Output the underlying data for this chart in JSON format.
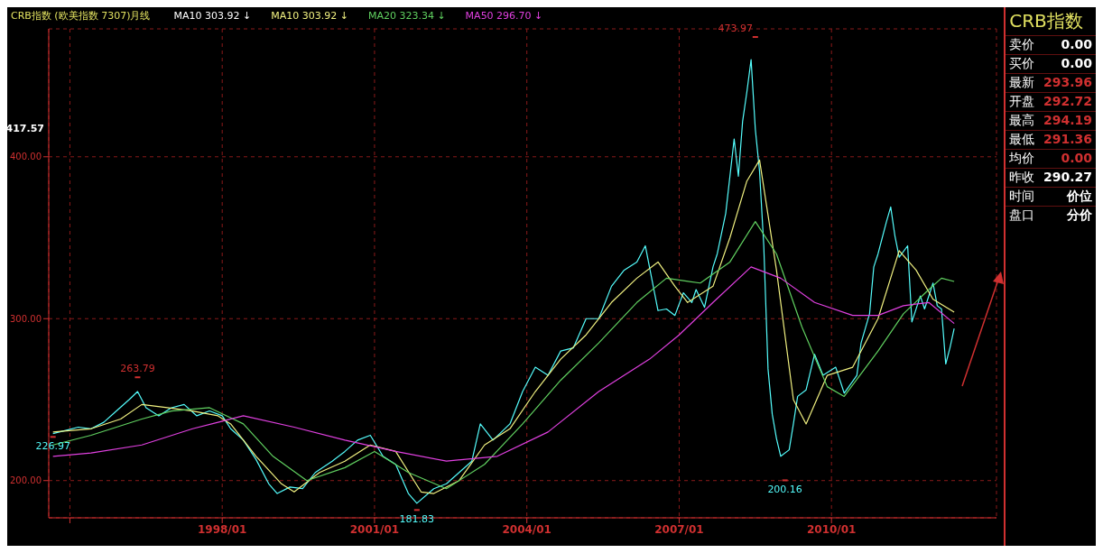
{
  "chart_data": {
    "type": "line",
    "title": "CRB指数 (欧美指数 7307)月线",
    "subtitle": "MA10 303.92 ↓",
    "legend": "top left",
    "grid": true,
    "xlim": [
      "1994-08",
      "2013-04"
    ],
    "xticks": [
      {
        "value": "1995-01",
        "label": null
      },
      {
        "value": "1998-01",
        "label": "1998/01"
      },
      {
        "value": "2001-01",
        "label": "2001/01"
      },
      {
        "value": "2004-01",
        "label": "2004/01"
      },
      {
        "value": "2007-01",
        "label": "2007/01"
      },
      {
        "value": "2010-01",
        "label": "2010/01"
      }
    ],
    "ylim": [
      177,
      479
    ],
    "yticks": [
      {
        "value": 200,
        "label": "200.00"
      },
      {
        "value": 300,
        "label": "300.00"
      },
      {
        "value": 400,
        "label": "400.00"
      }
    ],
    "series": [
      {
        "type": "scatter",
        "color": "#d03030",
        "x": [
          "1994-09",
          "1996-05",
          "2001-11",
          "2008-07",
          "2009-02"
        ],
        "values": [
          226.97,
          263.79,
          181.83,
          473.97,
          200.16
        ],
        "value_labels": [
          "226.97",
          "263.79",
          "181.83",
          "473.97",
          "200.16"
        ]
      },
      {
        "color": "#54fcfc",
        "x": [
          "1994-09",
          "1994-12",
          "1995-03",
          "1995-06",
          "1995-09",
          "1995-12",
          "1996-03",
          "1996-05",
          "1996-07",
          "1996-10",
          "1997-01",
          "1997-04",
          "1997-07",
          "1997-10",
          "1998-01",
          "1998-03",
          "1998-06",
          "1998-09",
          "1998-12",
          "1999-02",
          "1999-05",
          "1999-08",
          "1999-11",
          "2000-03",
          "2000-06",
          "2000-09",
          "2000-12",
          "2001-03",
          "2001-06",
          "2001-09",
          "2001-11",
          "2002-03",
          "2002-06",
          "2002-09",
          "2002-12",
          "2003-02",
          "2003-05",
          "2003-09",
          "2003-12",
          "2004-03",
          "2004-06",
          "2004-09",
          "2004-12",
          "2005-03",
          "2005-06",
          "2005-09",
          "2005-12",
          "2006-03",
          "2006-05",
          "2006-08",
          "2006-10",
          "2006-12",
          "2007-02",
          "2007-04",
          "2007-05",
          "2007-07",
          "2007-09",
          "2007-10",
          "2007-12",
          "2008-02",
          "2008-03",
          "2008-04",
          "2008-05",
          "2008-06",
          "2008-07",
          "2008-08",
          "2008-09",
          "2008-10",
          "2008-11",
          "2008-12",
          "2009-01",
          "2009-03",
          "2009-04",
          "2009-05",
          "2009-07",
          "2009-09",
          "2009-11",
          "2010-02",
          "2010-04",
          "2010-07",
          "2010-08",
          "2010-10",
          "2010-11",
          "2010-12",
          "2011-02",
          "2011-03",
          "2011-04",
          "2011-05",
          "2011-07",
          "2011-08",
          "2011-10",
          "2011-11",
          "2012-01",
          "2012-02",
          "2012-03",
          "2012-04",
          "2012-05",
          "2012-06"
        ],
        "values": [
          229,
          231,
          233,
          232,
          236,
          243,
          250,
          255,
          245,
          240,
          245,
          247,
          240,
          243,
          240,
          232,
          225,
          213,
          198,
          192,
          196,
          195,
          205,
          212,
          218,
          225,
          228,
          215,
          210,
          192,
          186,
          195,
          198,
          205,
          212,
          235,
          225,
          235,
          255,
          270,
          265,
          280,
          282,
          300,
          300,
          320,
          330,
          335,
          345,
          305,
          306,
          302,
          316,
          310,
          318,
          307,
          332,
          340,
          365,
          411,
          388,
          422,
          440,
          460,
          417,
          391,
          345,
          269,
          241,
          226,
          215,
          219,
          235,
          252,
          256,
          278,
          265,
          270,
          254,
          265,
          285,
          303,
          332,
          340,
          360,
          369,
          351,
          338,
          345,
          298,
          314,
          306,
          322,
          308,
          306,
          272,
          282,
          294
        ]
      },
      {
        "name": "MA10 303.92 ↓",
        "color": "#f0f080",
        "x": [
          "1994-09",
          "1995-06",
          "1996-01",
          "1996-06",
          "1996-12",
          "1997-06",
          "1997-12",
          "1998-03",
          "1998-09",
          "1999-03",
          "1999-06",
          "1999-12",
          "2000-06",
          "2000-12",
          "2001-06",
          "2001-12",
          "2002-03",
          "2002-09",
          "2003-03",
          "2003-09",
          "2004-03",
          "2004-09",
          "2005-03",
          "2005-09",
          "2006-03",
          "2006-08",
          "2006-12",
          "2007-03",
          "2007-09",
          "2008-01",
          "2008-05",
          "2008-08",
          "2008-12",
          "2009-04",
          "2009-07",
          "2009-12",
          "2010-06",
          "2010-12",
          "2011-05",
          "2011-09",
          "2012-01",
          "2012-06"
        ],
        "values": [
          230,
          232,
          238,
          247,
          245,
          243,
          240,
          235,
          215,
          198,
          193,
          205,
          212,
          222,
          218,
          193,
          192,
          200,
          222,
          232,
          255,
          275,
          290,
          310,
          325,
          335,
          320,
          310,
          320,
          350,
          385,
          398,
          330,
          250,
          235,
          265,
          270,
          300,
          342,
          330,
          312,
          304
        ]
      },
      {
        "name": "MA20 323.34 ↓",
        "color": "#60d060",
        "x": [
          "1994-09",
          "1995-06",
          "1996-06",
          "1997-01",
          "1997-10",
          "1998-06",
          "1999-01",
          "1999-09",
          "2000-06",
          "2001-01",
          "2001-09",
          "2002-06",
          "2003-03",
          "2003-12",
          "2004-09",
          "2005-06",
          "2006-03",
          "2006-10",
          "2007-06",
          "2008-01",
          "2008-07",
          "2008-12",
          "2009-06",
          "2009-12",
          "2010-04",
          "2010-12",
          "2011-06",
          "2011-12",
          "2012-03",
          "2012-06"
        ],
        "values": [
          222,
          228,
          238,
          243,
          245,
          235,
          215,
          200,
          208,
          218,
          205,
          195,
          210,
          235,
          262,
          285,
          310,
          325,
          322,
          335,
          360,
          340,
          295,
          258,
          252,
          280,
          303,
          318,
          325,
          323
        ]
      },
      {
        "name": "MA50 296.70 ↓",
        "color": "#e040e0",
        "x": [
          "1994-09",
          "1995-06",
          "1996-06",
          "1997-06",
          "1997-12",
          "1998-06",
          "1999-06",
          "2000-06",
          "2001-06",
          "2002-06",
          "2003-06",
          "2004-06",
          "2005-06",
          "2006-06",
          "2007-01",
          "2007-09",
          "2008-06",
          "2009-01",
          "2009-09",
          "2010-06",
          "2010-12",
          "2011-06",
          "2011-12",
          "2012-06"
        ],
        "values": [
          215,
          217,
          222,
          232,
          236,
          240,
          233,
          225,
          218,
          212,
          215,
          230,
          255,
          275,
          290,
          310,
          332,
          325,
          310,
          302,
          302,
          308,
          310,
          297
        ]
      }
    ],
    "annotations": [
      "417.57",
      "CRB指数",
      "卖价",
      "0.00",
      "买价",
      "0.00",
      "最新",
      "293.96",
      "开盘",
      "292.72",
      "最高",
      "294.19",
      "最低",
      "291.36",
      "均价",
      "0.00",
      "昨收",
      "290.27",
      "时间",
      "价位",
      "盘口",
      "分价"
    ]
  }
}
